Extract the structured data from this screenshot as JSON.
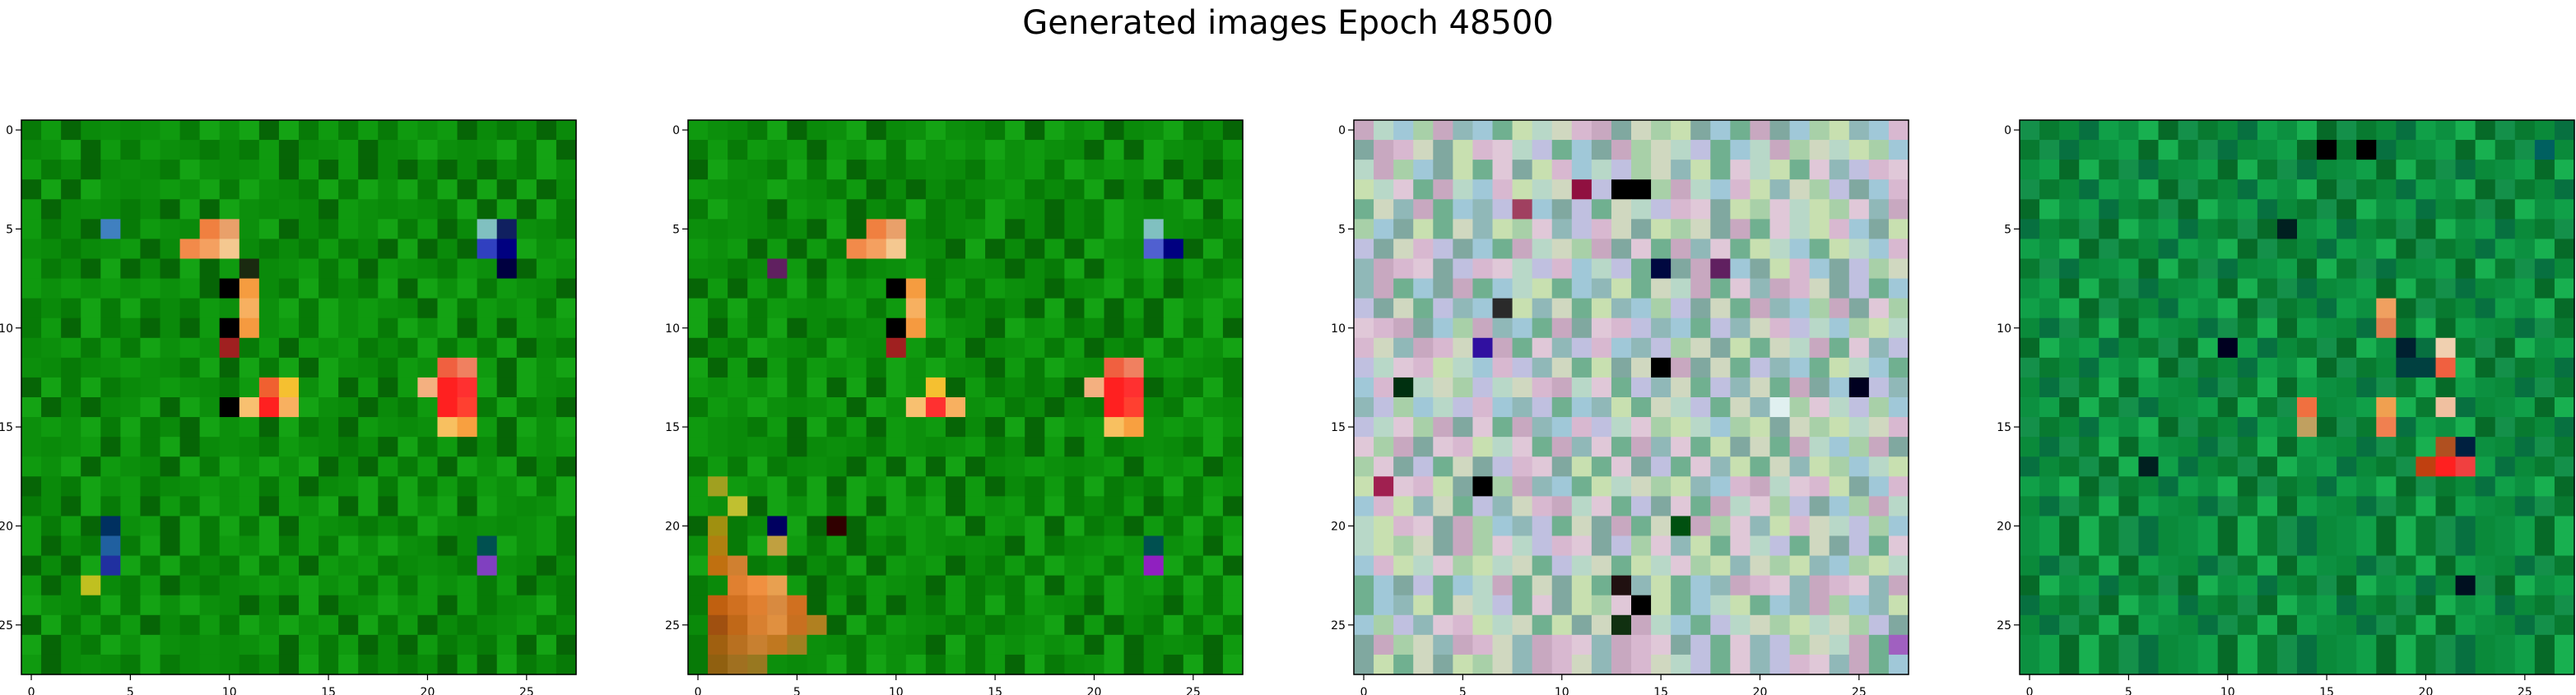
{
  "title": "Generated images Epoch 48500",
  "chart_data": [
    {
      "type": "heatmap",
      "grid_size": 28,
      "title": "",
      "xlabel": "",
      "ylabel": "",
      "xlim": [
        -0.5,
        27.5
      ],
      "ylim": [
        27.5,
        -0.5
      ],
      "x_ticks": [
        0,
        5,
        10,
        15,
        20,
        25
      ],
      "y_ticks": [
        0,
        5,
        10,
        15,
        20,
        25
      ],
      "palette": [
        "#0a8a0a",
        "#077a07",
        "#0f9a0f",
        "#066506",
        "#14a314",
        "#0c8f0c"
      ],
      "marks": [
        {
          "row": 5,
          "col": 9,
          "color": "#f08040"
        },
        {
          "row": 5,
          "col": 10,
          "color": "#e9a06a"
        },
        {
          "row": 6,
          "col": 8,
          "color": "#f28a4a"
        },
        {
          "row": 6,
          "col": 9,
          "color": "#f4a060"
        },
        {
          "row": 6,
          "col": 10,
          "color": "#f4c890"
        },
        {
          "row": 7,
          "col": 11,
          "color": "#1a2a10"
        },
        {
          "row": 8,
          "col": 10,
          "color": "#000000"
        },
        {
          "row": 8,
          "col": 11,
          "color": "#f59c40"
        },
        {
          "row": 9,
          "col": 11,
          "color": "#f7b060"
        },
        {
          "row": 10,
          "col": 10,
          "color": "#000000"
        },
        {
          "row": 10,
          "col": 11,
          "color": "#f59a40"
        },
        {
          "row": 11,
          "col": 10,
          "color": "#a02020"
        },
        {
          "row": 12,
          "col": 21,
          "color": "#f06040"
        },
        {
          "row": 12,
          "col": 22,
          "color": "#f08060"
        },
        {
          "row": 13,
          "col": 12,
          "color": "#f06030"
        },
        {
          "row": 13,
          "col": 13,
          "color": "#f5c030"
        },
        {
          "row": 13,
          "col": 20,
          "color": "#f4b080"
        },
        {
          "row": 13,
          "col": 21,
          "color": "#ff2020"
        },
        {
          "row": 13,
          "col": 22,
          "color": "#ff3030"
        },
        {
          "row": 14,
          "col": 10,
          "color": "#000000"
        },
        {
          "row": 14,
          "col": 11,
          "color": "#f8c070"
        },
        {
          "row": 14,
          "col": 12,
          "color": "#ff2020"
        },
        {
          "row": 14,
          "col": 13,
          "color": "#f8b060"
        },
        {
          "row": 14,
          "col": 21,
          "color": "#ff2020"
        },
        {
          "row": 14,
          "col": 22,
          "color": "#ff4030"
        },
        {
          "row": 15,
          "col": 21,
          "color": "#f8c060"
        },
        {
          "row": 15,
          "col": 22,
          "color": "#f8a040"
        },
        {
          "row": 5,
          "col": 23,
          "color": "#80c0c0"
        },
        {
          "row": 5,
          "col": 24,
          "color": "#102060"
        },
        {
          "row": 6,
          "col": 23,
          "color": "#3040c0"
        },
        {
          "row": 6,
          "col": 24,
          "color": "#000080"
        },
        {
          "row": 7,
          "col": 24,
          "color": "#000040"
        },
        {
          "row": 5,
          "col": 4,
          "color": "#4080c0"
        },
        {
          "row": 21,
          "col": 4,
          "color": "#2060a0"
        },
        {
          "row": 22,
          "col": 4,
          "color": "#2030a0"
        },
        {
          "row": 20,
          "col": 4,
          "color": "#003060"
        },
        {
          "row": 21,
          "col": 23,
          "color": "#005050"
        },
        {
          "row": 22,
          "col": 23,
          "color": "#8040c0"
        },
        {
          "row": 23,
          "col": 3,
          "color": "#c0c020"
        }
      ]
    },
    {
      "type": "heatmap",
      "grid_size": 28,
      "title": "",
      "xlabel": "",
      "ylabel": "",
      "xlim": [
        -0.5,
        27.5
      ],
      "ylim": [
        27.5,
        -0.5
      ],
      "x_ticks": [
        0,
        5,
        10,
        15,
        20,
        25
      ],
      "y_ticks": [
        0,
        5,
        10,
        15,
        20,
        25
      ],
      "palette": [
        "#0a8a0a",
        "#077a07",
        "#0f9a0f",
        "#066506",
        "#14a314",
        "#0c8f0c"
      ],
      "marks": [
        {
          "row": 5,
          "col": 9,
          "color": "#f08040"
        },
        {
          "row": 5,
          "col": 10,
          "color": "#e9a06a"
        },
        {
          "row": 6,
          "col": 8,
          "color": "#f28a4a"
        },
        {
          "row": 6,
          "col": 9,
          "color": "#f4a060"
        },
        {
          "row": 6,
          "col": 10,
          "color": "#f4c890"
        },
        {
          "row": 7,
          "col": 4,
          "color": "#602060"
        },
        {
          "row": 8,
          "col": 10,
          "color": "#000000"
        },
        {
          "row": 8,
          "col": 11,
          "color": "#f59c40"
        },
        {
          "row": 9,
          "col": 11,
          "color": "#f7b060"
        },
        {
          "row": 10,
          "col": 10,
          "color": "#000000"
        },
        {
          "row": 10,
          "col": 11,
          "color": "#f59a40"
        },
        {
          "row": 11,
          "col": 10,
          "color": "#a02020"
        },
        {
          "row": 12,
          "col": 21,
          "color": "#f06040"
        },
        {
          "row": 12,
          "col": 22,
          "color": "#f08060"
        },
        {
          "row": 13,
          "col": 12,
          "color": "#f5c030"
        },
        {
          "row": 13,
          "col": 20,
          "color": "#f4b080"
        },
        {
          "row": 13,
          "col": 21,
          "color": "#ff2020"
        },
        {
          "row": 13,
          "col": 22,
          "color": "#ff3030"
        },
        {
          "row": 14,
          "col": 11,
          "color": "#f8c070"
        },
        {
          "row": 14,
          "col": 12,
          "color": "#ff3030"
        },
        {
          "row": 14,
          "col": 13,
          "color": "#f8b060"
        },
        {
          "row": 14,
          "col": 21,
          "color": "#ff2020"
        },
        {
          "row": 14,
          "col": 22,
          "color": "#ff4030"
        },
        {
          "row": 15,
          "col": 21,
          "color": "#f8c060"
        },
        {
          "row": 15,
          "col": 22,
          "color": "#f8a040"
        },
        {
          "row": 5,
          "col": 23,
          "color": "#80c0c0"
        },
        {
          "row": 6,
          "col": 23,
          "color": "#5060d0"
        },
        {
          "row": 6,
          "col": 24,
          "color": "#000080"
        },
        {
          "row": 20,
          "col": 4,
          "color": "#000060"
        },
        {
          "row": 21,
          "col": 4,
          "color": "#c0a040"
        },
        {
          "row": 22,
          "col": 23,
          "color": "#9020c0"
        },
        {
          "row": 21,
          "col": 23,
          "color": "#005050"
        },
        {
          "row": 20,
          "col": 7,
          "color": "#300000"
        },
        {
          "row": 18,
          "col": 1,
          "color": "#a0a020"
        },
        {
          "row": 19,
          "col": 2,
          "color": "#c0c030"
        },
        {
          "row": 20,
          "col": 1,
          "color": "#a09010"
        },
        {
          "row": 21,
          "col": 1,
          "color": "#b08010"
        },
        {
          "row": 22,
          "col": 1,
          "color": "#c07010"
        },
        {
          "row": 22,
          "col": 2,
          "color": "#d08030"
        },
        {
          "row": 23,
          "col": 2,
          "color": "#e08030"
        },
        {
          "row": 23,
          "col": 3,
          "color": "#f09040"
        },
        {
          "row": 23,
          "col": 4,
          "color": "#e8a050"
        },
        {
          "row": 24,
          "col": 1,
          "color": "#c06010"
        },
        {
          "row": 24,
          "col": 2,
          "color": "#d07020"
        },
        {
          "row": 24,
          "col": 3,
          "color": "#e08030"
        },
        {
          "row": 24,
          "col": 4,
          "color": "#d88a40"
        },
        {
          "row": 24,
          "col": 5,
          "color": "#d07020"
        },
        {
          "row": 25,
          "col": 1,
          "color": "#a05010"
        },
        {
          "row": 25,
          "col": 2,
          "color": "#c06818"
        },
        {
          "row": 25,
          "col": 3,
          "color": "#d88030"
        },
        {
          "row": 25,
          "col": 4,
          "color": "#e09040"
        },
        {
          "row": 25,
          "col": 5,
          "color": "#c87020"
        },
        {
          "row": 25,
          "col": 6,
          "color": "#b08020"
        },
        {
          "row": 26,
          "col": 1,
          "color": "#a06010"
        },
        {
          "row": 26,
          "col": 2,
          "color": "#b87020"
        },
        {
          "row": 26,
          "col": 3,
          "color": "#c88030"
        },
        {
          "row": 26,
          "col": 4,
          "color": "#c07820"
        },
        {
          "row": 26,
          "col": 5,
          "color": "#a08020"
        },
        {
          "row": 27,
          "col": 1,
          "color": "#906010"
        },
        {
          "row": 27,
          "col": 2,
          "color": "#a07020"
        },
        {
          "row": 27,
          "col": 3,
          "color": "#987820"
        }
      ]
    },
    {
      "type": "heatmap",
      "grid_size": 28,
      "title": "",
      "xlabel": "",
      "ylabel": "",
      "xlim": [
        -0.5,
        27.5
      ],
      "ylim": [
        27.5,
        -0.5
      ],
      "x_ticks": [
        0,
        5,
        10,
        15,
        20,
        25
      ],
      "y_ticks": [
        0,
        5,
        10,
        15,
        20,
        25
      ],
      "palette": [
        "#b8d8c8",
        "#a0c8d8",
        "#d8b8d0",
        "#c8e0b0",
        "#90b8b8",
        "#e0c8d8",
        "#a8d0a8",
        "#c0c0e0",
        "#80a8a0",
        "#d0d8c0",
        "#70b090",
        "#c8a8c0"
      ],
      "marks": [
        {
          "row": 3,
          "col": 13,
          "color": "#000000"
        },
        {
          "row": 3,
          "col": 14,
          "color": "#000000"
        },
        {
          "row": 3,
          "col": 11,
          "color": "#901040"
        },
        {
          "row": 4,
          "col": 8,
          "color": "#a04060"
        },
        {
          "row": 7,
          "col": 15,
          "color": "#000840"
        },
        {
          "row": 7,
          "col": 18,
          "color": "#602060"
        },
        {
          "row": 9,
          "col": 7,
          "color": "#2a2a2a"
        },
        {
          "row": 11,
          "col": 6,
          "color": "#3010a0"
        },
        {
          "row": 12,
          "col": 15,
          "color": "#000000"
        },
        {
          "row": 13,
          "col": 2,
          "color": "#003010"
        },
        {
          "row": 13,
          "col": 25,
          "color": "#000020"
        },
        {
          "row": 14,
          "col": 21,
          "color": "#e0f0f0"
        },
        {
          "row": 18,
          "col": 6,
          "color": "#000000"
        },
        {
          "row": 18,
          "col": 1,
          "color": "#a02050"
        },
        {
          "row": 20,
          "col": 16,
          "color": "#005010"
        },
        {
          "row": 23,
          "col": 13,
          "color": "#201010"
        },
        {
          "row": 24,
          "col": 14,
          "color": "#000000"
        },
        {
          "row": 25,
          "col": 13,
          "color": "#103010"
        },
        {
          "row": 26,
          "col": 27,
          "color": "#a060c0"
        }
      ]
    },
    {
      "type": "heatmap",
      "grid_size": 28,
      "title": "",
      "xlabel": "",
      "ylabel": "",
      "xlim": [
        -0.5,
        27.5
      ],
      "ylim": [
        27.5,
        -0.5
      ],
      "x_ticks": [
        0,
        5,
        10,
        15,
        20,
        25
      ],
      "y_ticks": [
        0,
        5,
        10,
        15,
        20,
        25
      ],
      "palette": [
        "#0a8a3a",
        "#087a30",
        "#10a048",
        "#066a28",
        "#18b050",
        "#0c9040",
        "#14904a",
        "#077040"
      ],
      "marks": [
        {
          "row": 1,
          "col": 15,
          "color": "#000000"
        },
        {
          "row": 1,
          "col": 17,
          "color": "#000000"
        },
        {
          "row": 1,
          "col": 26,
          "color": "#006060"
        },
        {
          "row": 5,
          "col": 13,
          "color": "#002020"
        },
        {
          "row": 9,
          "col": 18,
          "color": "#f0a060"
        },
        {
          "row": 10,
          "col": 18,
          "color": "#e08050"
        },
        {
          "row": 11,
          "col": 10,
          "color": "#000020"
        },
        {
          "row": 11,
          "col": 19,
          "color": "#002030"
        },
        {
          "row": 11,
          "col": 21,
          "color": "#f0d0b0"
        },
        {
          "row": 12,
          "col": 21,
          "color": "#f06040"
        },
        {
          "row": 12,
          "col": 20,
          "color": "#004040"
        },
        {
          "row": 12,
          "col": 19,
          "color": "#004040"
        },
        {
          "row": 14,
          "col": 14,
          "color": "#f07040"
        },
        {
          "row": 14,
          "col": 18,
          "color": "#f0a050"
        },
        {
          "row": 14,
          "col": 21,
          "color": "#f0c0a0"
        },
        {
          "row": 15,
          "col": 18,
          "color": "#f08050"
        },
        {
          "row": 15,
          "col": 14,
          "color": "#c0a060"
        },
        {
          "row": 16,
          "col": 22,
          "color": "#002040"
        },
        {
          "row": 17,
          "col": 21,
          "color": "#ff2020"
        },
        {
          "row": 17,
          "col": 22,
          "color": "#f04040"
        },
        {
          "row": 17,
          "col": 20,
          "color": "#c04010"
        },
        {
          "row": 16,
          "col": 21,
          "color": "#b05020"
        },
        {
          "row": 17,
          "col": 6,
          "color": "#002020"
        },
        {
          "row": 23,
          "col": 22,
          "color": "#001020"
        }
      ]
    }
  ]
}
